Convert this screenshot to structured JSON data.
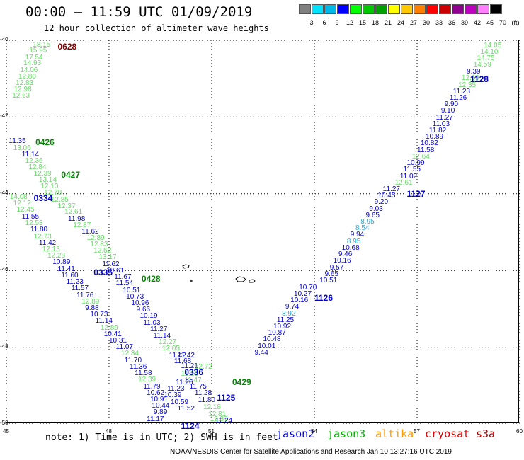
{
  "title": "00:00 – 11:59 UTC 01/09/2019",
  "subtitle": "12 hour collection of altimeter wave heights",
  "legend": {
    "labels": [
      "3",
      "6",
      "9",
      "12",
      "15",
      "18",
      "21",
      "24",
      "27",
      "30",
      "33",
      "36",
      "39",
      "42",
      "45",
      "70",
      "(ft)"
    ],
    "colors": [
      "#808080",
      "#00e0ff",
      "#00b8e8",
      "#0000ff",
      "#00ff00",
      "#00c800",
      "#00a000",
      "#ffff00",
      "#ffc800",
      "#ff8000",
      "#ff0000",
      "#c80000",
      "#900090",
      "#c000c0",
      "#ff80ff",
      "#000000"
    ]
  },
  "axes": {
    "lat_labels": [
      "-40",
      "-42",
      "-44",
      "-46",
      "-48",
      "-50"
    ],
    "lon_labels": [
      "45",
      "48",
      "51",
      "54",
      "57",
      "60"
    ]
  },
  "colors": {
    "blue": "#0000cc",
    "light_green": "#66dd66",
    "green": "#008800",
    "cyan": "#22aadd",
    "maroon": "#880000",
    "orange": "#ff9900",
    "red": "#dd0000"
  },
  "chart_data": {
    "type": "scatter",
    "xlim": [
      45,
      60
    ],
    "ylim": [
      -50,
      -40
    ],
    "grid": true,
    "track_times": [
      {
        "label": "0628",
        "lon": 46.5,
        "lat": -40.05,
        "color": "maroon"
      },
      {
        "label": "1128",
        "lon": 58.55,
        "lat": -40.9,
        "color": "blue"
      },
      {
        "label": "0426",
        "lon": 45.85,
        "lat": -42.55,
        "color": "green"
      },
      {
        "label": "0427",
        "lon": 46.6,
        "lat": -43.4,
        "color": "green"
      },
      {
        "label": "0334",
        "lon": 45.8,
        "lat": -44.0,
        "color": "blue"
      },
      {
        "label": "1127",
        "lon": 56.7,
        "lat": -43.9,
        "color": "blue"
      },
      {
        "label": "0335",
        "lon": 47.55,
        "lat": -45.95,
        "color": "blue"
      },
      {
        "label": "0428",
        "lon": 48.95,
        "lat": -46.1,
        "color": "green"
      },
      {
        "label": "1126",
        "lon": 54.0,
        "lat": -46.6,
        "color": "blue"
      },
      {
        "label": "0336",
        "lon": 50.2,
        "lat": -48.55,
        "color": "blue"
      },
      {
        "label": "0429",
        "lon": 51.6,
        "lat": -48.8,
        "color": "green"
      },
      {
        "label": "1125",
        "lon": 51.15,
        "lat": -49.2,
        "color": "blue"
      },
      {
        "label": "1124",
        "lon": 50.1,
        "lat": -49.95,
        "color": "blue"
      }
    ],
    "points": [
      {
        "v": "18.15",
        "lon": 45.77,
        "lat": -40.04,
        "c": "light_green"
      },
      {
        "v": "15.95",
        "lon": 45.67,
        "lat": -40.19,
        "c": "light_green"
      },
      {
        "v": "17.54",
        "lon": 45.55,
        "lat": -40.37,
        "c": "light_green"
      },
      {
        "v": "14.93",
        "lon": 45.5,
        "lat": -40.52,
        "c": "light_green"
      },
      {
        "v": "14.06",
        "lon": 45.4,
        "lat": -40.7,
        "c": "light_green"
      },
      {
        "v": "12.80",
        "lon": 45.35,
        "lat": -40.86,
        "c": "light_green"
      },
      {
        "v": "12.83",
        "lon": 45.27,
        "lat": -41.04,
        "c": "light_green"
      },
      {
        "v": "12.98",
        "lon": 45.22,
        "lat": -41.2,
        "c": "light_green"
      },
      {
        "v": "12.63",
        "lon": 45.17,
        "lat": -41.37,
        "c": "light_green"
      },
      {
        "v": "11.35",
        "lon": 45.07,
        "lat": -42.55,
        "c": "blue"
      },
      {
        "v": "13.06",
        "lon": 45.2,
        "lat": -42.73,
        "c": "light_green"
      },
      {
        "v": "11.14",
        "lon": 45.45,
        "lat": -42.9,
        "c": "blue"
      },
      {
        "v": "12.36",
        "lon": 45.55,
        "lat": -43.06,
        "c": "light_green"
      },
      {
        "v": "12.84",
        "lon": 45.65,
        "lat": -43.23,
        "c": "light_green"
      },
      {
        "v": "12.39",
        "lon": 45.8,
        "lat": -43.4,
        "c": "light_green"
      },
      {
        "v": "13.14",
        "lon": 45.95,
        "lat": -43.57,
        "c": "light_green"
      },
      {
        "v": "12.10",
        "lon": 46.0,
        "lat": -43.73,
        "c": "light_green"
      },
      {
        "v": "12.78",
        "lon": 46.1,
        "lat": -43.9,
        "c": "light_green"
      },
      {
        "v": "12.85",
        "lon": 46.3,
        "lat": -44.07,
        "c": "light_green"
      },
      {
        "v": "12.37",
        "lon": 46.5,
        "lat": -44.24,
        "c": "light_green"
      },
      {
        "v": "12.61",
        "lon": 46.7,
        "lat": -44.4,
        "c": "light_green"
      },
      {
        "v": "11.98",
        "lon": 46.8,
        "lat": -44.57,
        "c": "blue"
      },
      {
        "v": "12.87",
        "lon": 46.95,
        "lat": -44.74,
        "c": "light_green"
      },
      {
        "v": "11.62",
        "lon": 47.2,
        "lat": -44.9,
        "c": "blue"
      },
      {
        "v": "12.89",
        "lon": 47.35,
        "lat": -45.07,
        "c": "light_green"
      },
      {
        "v": "12.83",
        "lon": 47.45,
        "lat": -45.24,
        "c": "light_green"
      },
      {
        "v": "12.52",
        "lon": 47.55,
        "lat": -45.41,
        "c": "light_green"
      },
      {
        "v": "13.17",
        "lon": 47.7,
        "lat": -45.58,
        "c": "light_green"
      },
      {
        "v": "11.62",
        "lon": 47.8,
        "lat": -45.75,
        "c": "blue"
      },
      {
        "v": "10.61",
        "lon": 47.92,
        "lat": -45.92,
        "c": "blue"
      },
      {
        "v": "11.67",
        "lon": 48.15,
        "lat": -46.09,
        "c": "blue"
      },
      {
        "v": "11.54",
        "lon": 48.2,
        "lat": -46.26,
        "c": "blue"
      },
      {
        "v": "10.51",
        "lon": 48.4,
        "lat": -46.43,
        "c": "blue"
      },
      {
        "v": "10.73",
        "lon": 48.5,
        "lat": -46.6,
        "c": "blue"
      },
      {
        "v": "10.96",
        "lon": 48.65,
        "lat": -46.77,
        "c": "blue"
      },
      {
        "v": "9.66",
        "lon": 48.8,
        "lat": -46.94,
        "c": "blue"
      },
      {
        "v": "10.19",
        "lon": 48.9,
        "lat": -47.11,
        "c": "blue"
      },
      {
        "v": "11.03",
        "lon": 49.0,
        "lat": -47.28,
        "c": "blue"
      },
      {
        "v": "11.27",
        "lon": 49.2,
        "lat": -47.45,
        "c": "blue"
      },
      {
        "v": "11.14",
        "lon": 49.3,
        "lat": -47.62,
        "c": "blue"
      },
      {
        "v": "12.27",
        "lon": 49.45,
        "lat": -47.79,
        "c": "light_green"
      },
      {
        "v": "12.05",
        "lon": 49.55,
        "lat": -47.96,
        "c": "light_green"
      },
      {
        "v": "11.42",
        "lon": 49.75,
        "lat": -48.13,
        "c": "blue"
      },
      {
        "v": "11.68",
        "lon": 49.9,
        "lat": -48.28,
        "c": "blue"
      },
      {
        "v": "11.21",
        "lon": 50.1,
        "lat": -48.42,
        "c": "blue"
      },
      {
        "v": "11.25",
        "lon": 50.1,
        "lat": -48.62,
        "c": "light_green"
      },
      {
        "v": "11.47",
        "lon": 50.2,
        "lat": -48.78,
        "c": "light_green"
      },
      {
        "v": "11.75",
        "lon": 50.35,
        "lat": -48.94,
        "c": "blue"
      },
      {
        "v": "11.28",
        "lon": 50.5,
        "lat": -49.12,
        "c": "blue"
      },
      {
        "v": "11.80",
        "lon": 50.6,
        "lat": -49.3,
        "c": "blue"
      },
      {
        "v": "12.18",
        "lon": 50.75,
        "lat": -49.48,
        "c": "light_green"
      },
      {
        "v": "12.81",
        "lon": 50.9,
        "lat": -49.66,
        "c": "light_green"
      },
      {
        "v": "11.24",
        "lon": 51.1,
        "lat": -49.84,
        "c": "blue"
      },
      {
        "v": "14.08",
        "lon": 45.1,
        "lat": -44.0,
        "c": "light_green"
      },
      {
        "v": "12.12",
        "lon": 45.2,
        "lat": -44.17,
        "c": "light_green"
      },
      {
        "v": "12.45",
        "lon": 45.3,
        "lat": -44.34,
        "c": "light_green"
      },
      {
        "v": "11.55",
        "lon": 45.45,
        "lat": -44.52,
        "c": "blue"
      },
      {
        "v": "12.53",
        "lon": 45.55,
        "lat": -44.69,
        "c": "light_green"
      },
      {
        "v": "11.80",
        "lon": 45.7,
        "lat": -44.86,
        "c": "blue"
      },
      {
        "v": "12.73",
        "lon": 45.8,
        "lat": -45.03,
        "c": "light_green"
      },
      {
        "v": "11.42",
        "lon": 45.95,
        "lat": -45.2,
        "c": "blue"
      },
      {
        "v": "12.13",
        "lon": 46.05,
        "lat": -45.37,
        "c": "light_green"
      },
      {
        "v": "12.28",
        "lon": 46.2,
        "lat": -45.54,
        "c": "light_green"
      },
      {
        "v": "10.89",
        "lon": 46.35,
        "lat": -45.71,
        "c": "blue"
      },
      {
        "v": "11.41",
        "lon": 46.5,
        "lat": -45.88,
        "c": "blue"
      },
      {
        "v": "11.60",
        "lon": 46.6,
        "lat": -46.05,
        "c": "blue"
      },
      {
        "v": "11.23",
        "lon": 46.75,
        "lat": -46.22,
        "c": "blue"
      },
      {
        "v": "11.57",
        "lon": 46.9,
        "lat": -46.39,
        "c": "blue"
      },
      {
        "v": "11.76",
        "lon": 47.05,
        "lat": -46.56,
        "c": "blue"
      },
      {
        "v": "12.89",
        "lon": 47.2,
        "lat": -46.73,
        "c": "light_green"
      },
      {
        "v": "9.88",
        "lon": 47.3,
        "lat": -46.9,
        "c": "blue"
      },
      {
        "v": "10.73",
        "lon": 47.45,
        "lat": -47.07,
        "c": "blue"
      },
      {
        "v": "11.14",
        "lon": 47.6,
        "lat": -47.24,
        "c": "blue"
      },
      {
        "v": "12.89",
        "lon": 47.75,
        "lat": -47.41,
        "c": "light_green"
      },
      {
        "v": "10.41",
        "lon": 47.85,
        "lat": -47.58,
        "c": "blue"
      },
      {
        "v": "10.31",
        "lon": 48.0,
        "lat": -47.75,
        "c": "blue"
      },
      {
        "v": "11.07",
        "lon": 48.2,
        "lat": -47.92,
        "c": "blue"
      },
      {
        "v": "12.34",
        "lon": 48.35,
        "lat": -48.09,
        "c": "light_green"
      },
      {
        "v": "11.70",
        "lon": 48.45,
        "lat": -48.26,
        "c": "blue"
      },
      {
        "v": "11.36",
        "lon": 48.6,
        "lat": -48.43,
        "c": "blue"
      },
      {
        "v": "11.58",
        "lon": 48.75,
        "lat": -48.6,
        "c": "blue"
      },
      {
        "v": "12.39",
        "lon": 48.85,
        "lat": -48.77,
        "c": "light_green"
      },
      {
        "v": "11.79",
        "lon": 49.0,
        "lat": -48.94,
        "c": "blue"
      },
      {
        "v": "10.62",
        "lon": 49.1,
        "lat": -49.11,
        "c": "blue"
      },
      {
        "v": "10.91",
        "lon": 49.2,
        "lat": -49.28,
        "c": "blue"
      },
      {
        "v": "10.44",
        "lon": 49.25,
        "lat": -49.45,
        "c": "blue"
      },
      {
        "v": "9.89",
        "lon": 49.3,
        "lat": -49.62,
        "c": "blue"
      },
      {
        "v": "11.17",
        "lon": 49.1,
        "lat": -49.8,
        "c": "blue"
      },
      {
        "v": "11.42",
        "lon": 50.0,
        "lat": -48.13,
        "c": "blue"
      },
      {
        "v": "12.72",
        "lon": 50.5,
        "lat": -48.44,
        "c": "light_green"
      },
      {
        "v": "11.26",
        "lon": 49.95,
        "lat": -48.83,
        "c": "blue"
      },
      {
        "v": "11.23",
        "lon": 49.7,
        "lat": -49.0,
        "c": "blue"
      },
      {
        "v": "10.39",
        "lon": 49.6,
        "lat": -49.17,
        "c": "blue"
      },
      {
        "v": "10.59",
        "lon": 49.8,
        "lat": -49.35,
        "c": "blue"
      },
      {
        "v": "11.52",
        "lon": 50.0,
        "lat": -49.52,
        "c": "blue"
      },
      {
        "v": "12.87",
        "lon": 50.95,
        "lat": -49.8,
        "c": "light_green"
      },
      {
        "v": "14.05",
        "lon": 58.95,
        "lat": -40.05,
        "c": "light_green"
      },
      {
        "v": "14.10",
        "lon": 58.85,
        "lat": -40.22,
        "c": "light_green"
      },
      {
        "v": "14.75",
        "lon": 58.75,
        "lat": -40.39,
        "c": "light_green"
      },
      {
        "v": "14.59",
        "lon": 58.65,
        "lat": -40.56,
        "c": "light_green"
      },
      {
        "v": "9.39",
        "lon": 58.45,
        "lat": -40.74,
        "c": "blue"
      },
      {
        "v": "12.69",
        "lon": 58.3,
        "lat": -40.91,
        "c": "light_green"
      },
      {
        "v": "12.35",
        "lon": 58.2,
        "lat": -41.08,
        "c": "light_green"
      },
      {
        "v": "11.23",
        "lon": 58.05,
        "lat": -41.25,
        "c": "blue"
      },
      {
        "v": "11.26",
        "lon": 57.95,
        "lat": -41.42,
        "c": "blue"
      },
      {
        "v": "9.90",
        "lon": 57.8,
        "lat": -41.59,
        "c": "blue"
      },
      {
        "v": "9.10",
        "lon": 57.7,
        "lat": -41.76,
        "c": "blue"
      },
      {
        "v": "11.27",
        "lon": 57.55,
        "lat": -41.93,
        "c": "blue"
      },
      {
        "v": "11.03",
        "lon": 57.45,
        "lat": -42.1,
        "c": "blue"
      },
      {
        "v": "11.82",
        "lon": 57.35,
        "lat": -42.27,
        "c": "blue"
      },
      {
        "v": "10.89",
        "lon": 57.25,
        "lat": -42.44,
        "c": "blue"
      },
      {
        "v": "10.82",
        "lon": 57.1,
        "lat": -42.61,
        "c": "blue"
      },
      {
        "v": "11.58",
        "lon": 57.0,
        "lat": -42.78,
        "c": "blue"
      },
      {
        "v": "12.64",
        "lon": 56.85,
        "lat": -42.95,
        "c": "light_green"
      },
      {
        "v": "10.99",
        "lon": 56.7,
        "lat": -43.12,
        "c": "blue"
      },
      {
        "v": "11.55",
        "lon": 56.6,
        "lat": -43.29,
        "c": "blue"
      },
      {
        "v": "11.02",
        "lon": 56.5,
        "lat": -43.46,
        "c": "blue"
      },
      {
        "v": "12.61",
        "lon": 56.35,
        "lat": -43.63,
        "c": "light_green"
      },
      {
        "v": "11.27",
        "lon": 56.0,
        "lat": -43.8,
        "c": "blue"
      },
      {
        "v": "10.45",
        "lon": 55.85,
        "lat": -43.97,
        "c": "blue"
      },
      {
        "v": "9.20",
        "lon": 55.75,
        "lat": -44.14,
        "c": "blue"
      },
      {
        "v": "9.03",
        "lon": 55.6,
        "lat": -44.31,
        "c": "blue"
      },
      {
        "v": "9.65",
        "lon": 55.5,
        "lat": -44.48,
        "c": "blue"
      },
      {
        "v": "8.95",
        "lon": 55.35,
        "lat": -44.65,
        "c": "cyan"
      },
      {
        "v": "8.54",
        "lon": 55.2,
        "lat": -44.82,
        "c": "cyan"
      },
      {
        "v": "9.94",
        "lon": 55.05,
        "lat": -44.99,
        "c": "blue"
      },
      {
        "v": "8.95",
        "lon": 54.95,
        "lat": -45.16,
        "c": "cyan"
      },
      {
        "v": "10.68",
        "lon": 54.8,
        "lat": -45.33,
        "c": "blue"
      },
      {
        "v": "9.46",
        "lon": 54.7,
        "lat": -45.5,
        "c": "blue"
      },
      {
        "v": "10.16",
        "lon": 54.55,
        "lat": -45.67,
        "c": "blue"
      },
      {
        "v": "9.57",
        "lon": 54.45,
        "lat": -45.84,
        "c": "blue"
      },
      {
        "v": "9.65",
        "lon": 54.3,
        "lat": -46.01,
        "c": "blue"
      },
      {
        "v": "10.51",
        "lon": 54.15,
        "lat": -46.18,
        "c": "blue"
      },
      {
        "v": "10.70",
        "lon": 53.55,
        "lat": -46.36,
        "c": "blue"
      },
      {
        "v": "10.27",
        "lon": 53.4,
        "lat": -46.53,
        "c": "blue"
      },
      {
        "v": "10.16",
        "lon": 53.3,
        "lat": -46.7,
        "c": "blue"
      },
      {
        "v": "9.74",
        "lon": 53.15,
        "lat": -46.87,
        "c": "blue"
      },
      {
        "v": "8.92",
        "lon": 53.05,
        "lat": -47.04,
        "c": "cyan"
      },
      {
        "v": "11.25",
        "lon": 52.9,
        "lat": -47.21,
        "c": "blue"
      },
      {
        "v": "10.92",
        "lon": 52.8,
        "lat": -47.38,
        "c": "blue"
      },
      {
        "v": "10.87",
        "lon": 52.65,
        "lat": -47.55,
        "c": "blue"
      },
      {
        "v": "10.48",
        "lon": 52.5,
        "lat": -47.72,
        "c": "blue"
      },
      {
        "v": "10.01",
        "lon": 52.35,
        "lat": -47.89,
        "c": "blue"
      },
      {
        "v": "9.44",
        "lon": 52.25,
        "lat": -48.06,
        "c": "blue"
      }
    ]
  },
  "note": "note: 1) Time is in UTC; 2) SWH is in feet",
  "satellites": [
    {
      "name": "jason2",
      "color": "#0000cc"
    },
    {
      "name": "jason3",
      "color": "#00aa00"
    },
    {
      "name": "altika",
      "color": "#ff9900"
    },
    {
      "name": "cryosat",
      "color": "#dd0000"
    },
    {
      "name": "s3a",
      "color": "#aa0000"
    }
  ],
  "credit": "NOAA/NESDIS Center for Satellite Applications and Research    Jan 10 13:27:16 UTC 2019"
}
